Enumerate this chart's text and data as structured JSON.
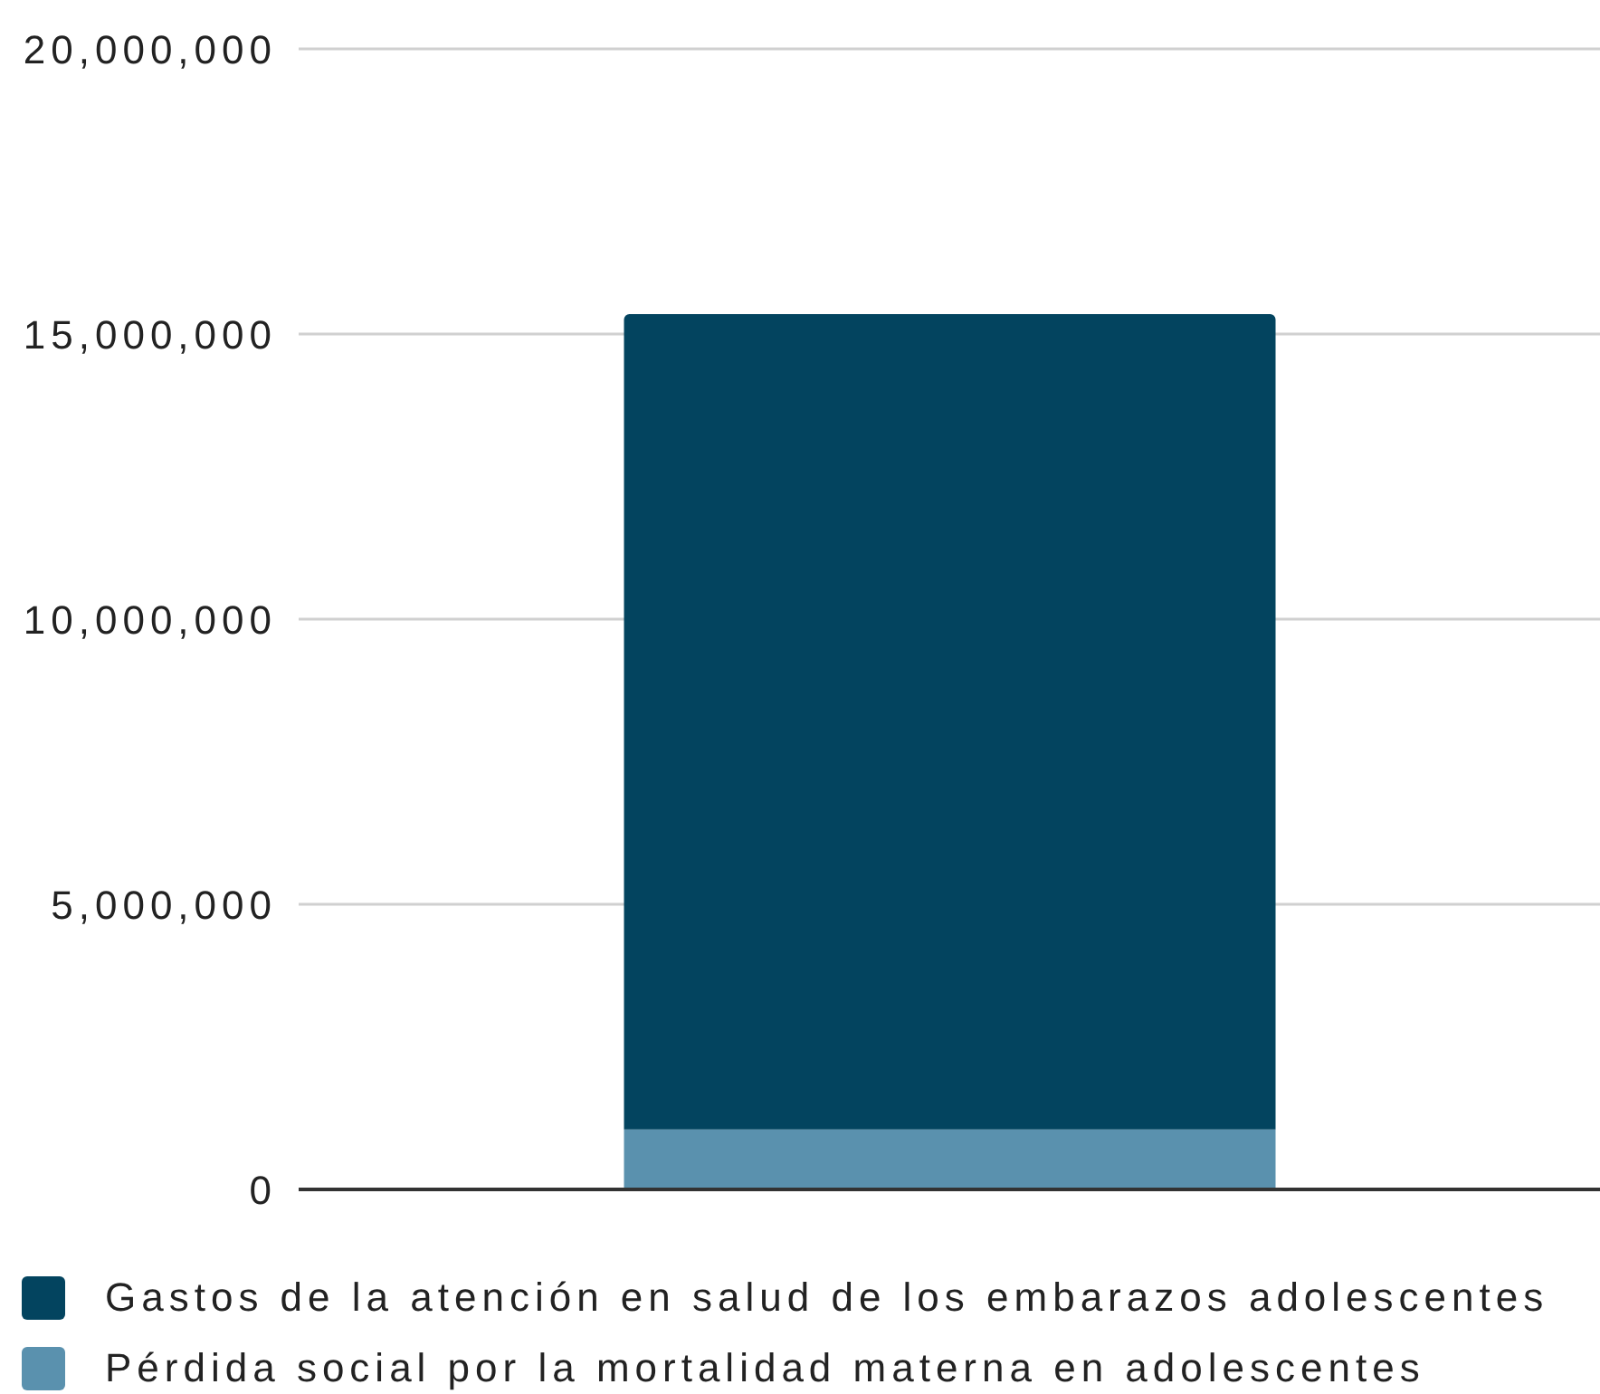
{
  "chart_data": {
    "type": "bar",
    "categories": [
      null
    ],
    "stacked": true,
    "series": [
      {
        "name": "Pérdida social por la mortalidad materna en adolescentes",
        "color": "#5a91ae",
        "values": [
          1050000
        ]
      },
      {
        "name": "Gastos de la atención en salud de los embarazos adolescentes",
        "color": "#03445f",
        "values": [
          14300000
        ]
      }
    ],
    "ylim": [
      0,
      20000000
    ],
    "yticks": [
      0,
      {
        "value": 5000000,
        "label": "5,000,000"
      },
      {
        "value": 10000000,
        "label": "10,000,000"
      },
      {
        "value": 15000000,
        "label": "15,000,000"
      },
      {
        "value": 20000000,
        "label": "20,000,000"
      }
    ],
    "grid": "y",
    "legend": "bottom left"
  }
}
